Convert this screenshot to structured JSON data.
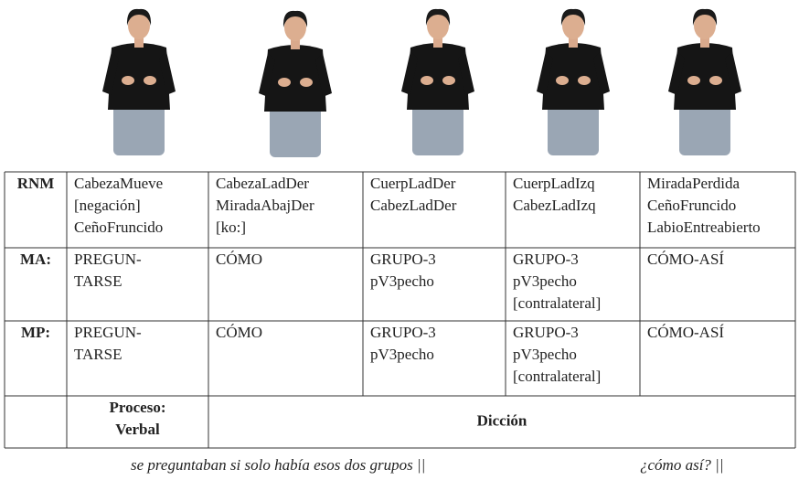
{
  "table": {
    "rows": [
      {
        "label": "RNM",
        "cells": [
          [
            "CabezaMueve",
            "[negación]",
            "CeñoFruncido"
          ],
          [
            "CabezaLadDer",
            "MiradaAbajDer",
            "[ko:]"
          ],
          [
            "CuerpLadDer",
            "CabezLadDer"
          ],
          [
            "CuerpLadIzq",
            "CabezLadIzq"
          ],
          [
            "MiradaPerdida",
            "CeñoFruncido",
            "LabioEntreabierto"
          ]
        ]
      },
      {
        "label": "MA:",
        "cells": [
          [
            "PREGUN-",
            "TARSE"
          ],
          [
            "CÓMO"
          ],
          [
            "GRUPO-3",
            "pV3pecho"
          ],
          [
            "GRUPO-3",
            "pV3pecho",
            "[contralateral]"
          ],
          [
            "CÓMO-ASÍ"
          ]
        ]
      },
      {
        "label": "MP:",
        "cells": [
          [
            "PREGUN-",
            "TARSE"
          ],
          [
            "CÓMO"
          ],
          [
            "GRUPO-3",
            "pV3pecho"
          ],
          [
            "GRUPO-3",
            "pV3pecho",
            "[contralateral]"
          ],
          [
            "CÓMO-ASÍ"
          ]
        ]
      }
    ],
    "footer": {
      "process": [
        "Proceso:",
        "Verbal"
      ],
      "diction": "Dicción"
    }
  },
  "caption": {
    "left": "se preguntaban si solo había esos dos grupos  ||",
    "right": "¿cómo así? ||"
  }
}
